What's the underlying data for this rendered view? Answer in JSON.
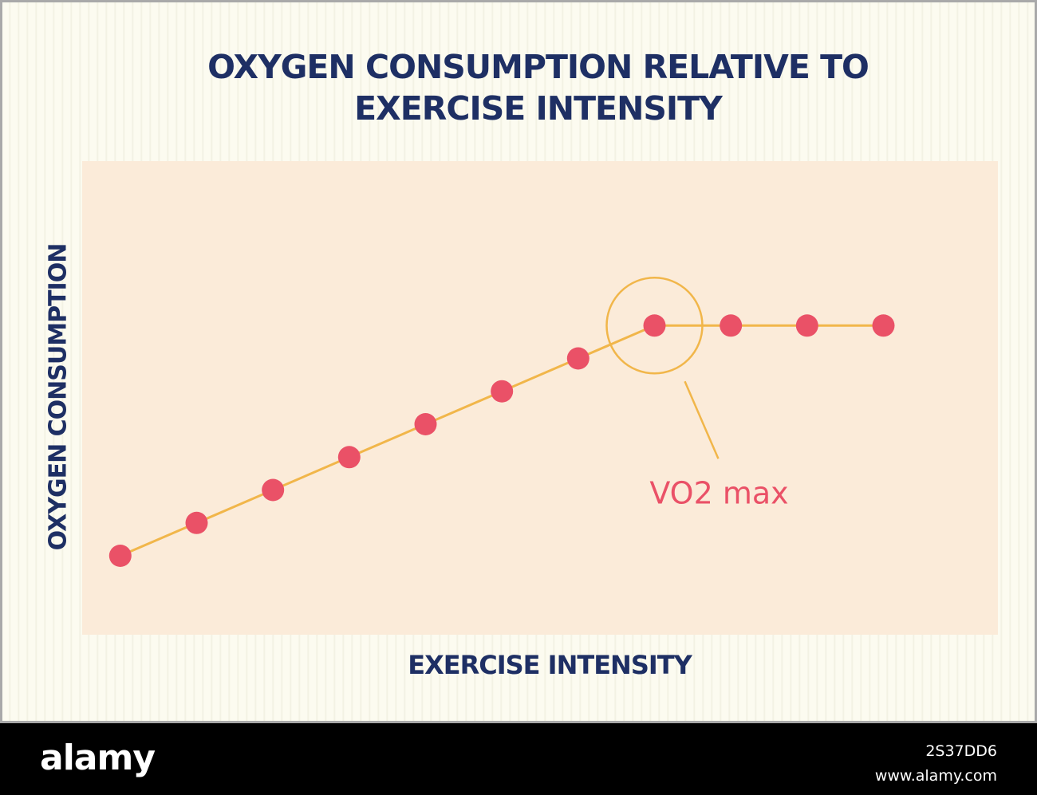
{
  "chart_data": {
    "type": "line",
    "title": "OXYGEN CONSUMPTION RELATIVE TO EXERCISE INTENSITY",
    "xlabel": "EXERCISE INTENSITY",
    "ylabel": "OXYGEN CONSUMPTION",
    "x": [
      1,
      2,
      3,
      4,
      5,
      6,
      7,
      8,
      9,
      10,
      11
    ],
    "series": [
      {
        "values": [
          1,
          2,
          3,
          4,
          5,
          6,
          7,
          8,
          8,
          8,
          8
        ]
      }
    ],
    "xlim": [
      0.5,
      12.5
    ],
    "ylim": [
      -1.4,
      13
    ],
    "grid": false,
    "annotation": {
      "text": "VO2 max",
      "at_index": 7
    },
    "colors": {
      "line": "#f1b64a",
      "marker": "#ea5167",
      "annotation_text": "#ea5167",
      "circle": "#f1b64a"
    }
  },
  "colors": {
    "title": "#1e2f64",
    "panel": "#fbebd9",
    "background": "#fcfbf0"
  },
  "footer": {
    "logo": "alamy",
    "image_id": "2S37DD6",
    "site": "www.alamy.com"
  }
}
